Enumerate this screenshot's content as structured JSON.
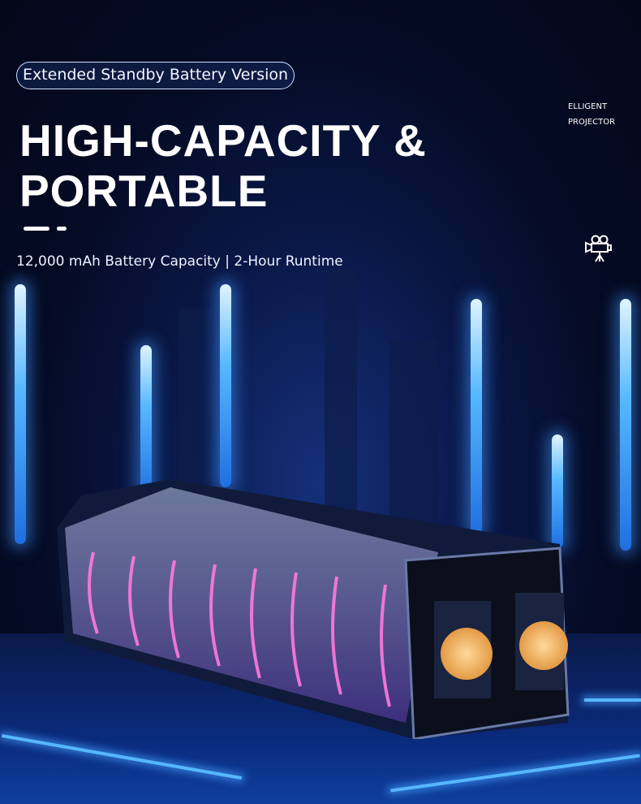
{
  "badge": {
    "label": "Extended Standby Battery Version"
  },
  "headline": {
    "line1": "HIGH-CAPACITY &",
    "line2": "PORTABLE"
  },
  "subtitle": "12,000 mAh Battery Capacity | 2-Hour Runtime",
  "brand": {
    "line1": "ELLIGENT",
    "line2": "PROJECTOR",
    "icon": "movie-camera-icon"
  },
  "colors": {
    "background": "#050a1c",
    "glow_blue": "#56b8ff",
    "battery_purple": "#b56bff",
    "knob_amber": "#f4b86a"
  }
}
